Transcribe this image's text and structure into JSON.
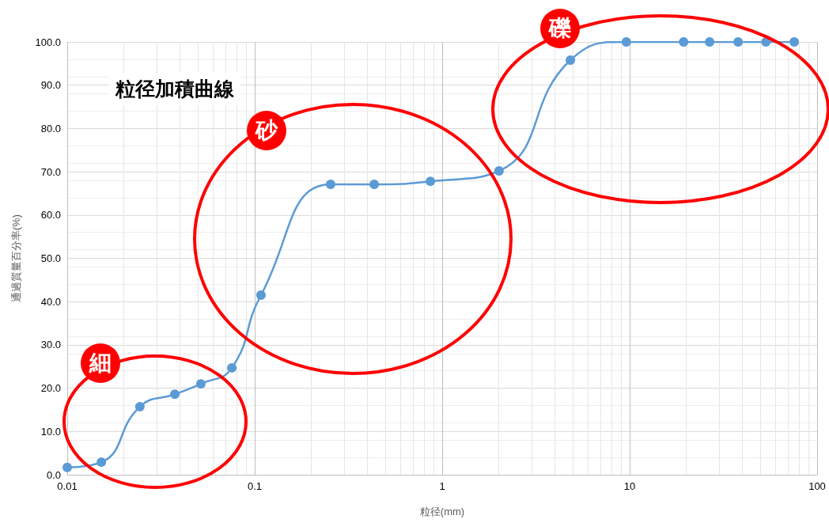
{
  "chart_data": {
    "type": "line",
    "title": "粒径加積曲線",
    "xlabel": "粒径(mm)",
    "ylabel": "通過質量百分率(%)",
    "x": [
      0.01,
      0.0152,
      0.0244,
      0.0375,
      0.0516,
      0.0755,
      0.108,
      0.254,
      0.434,
      0.865,
      2.01,
      4.83,
      9.6,
      19.4,
      26.7,
      37.9,
      53.3,
      75.5
    ],
    "series": [
      {
        "color": "#5b9bd5",
        "values": [
          1.7,
          2.9,
          15.7,
          18.6,
          21.0,
          24.7,
          41.5,
          67.1,
          67.1,
          67.8,
          70.2,
          95.8,
          100,
          100,
          100,
          100,
          100,
          100
        ]
      }
    ],
    "log": "x",
    "xlim": [
      0.01,
      100
    ],
    "xticks": [
      0.01,
      0.1,
      1,
      10,
      100
    ],
    "ylim": [
      0,
      100
    ],
    "yticks": [
      {
        "value": 0,
        "label": "0.0"
      },
      {
        "value": 10,
        "label": "10.0"
      },
      {
        "value": 20,
        "label": "20.0"
      },
      {
        "value": 30,
        "label": "30.0"
      },
      {
        "value": 40,
        "label": "40.0"
      },
      {
        "value": 50,
        "label": "50.0"
      },
      {
        "value": 60,
        "label": "60.0"
      },
      {
        "value": 70,
        "label": "70.0"
      },
      {
        "value": 80,
        "label": "80.0"
      },
      {
        "value": 90,
        "label": "90.0"
      },
      {
        "value": 100,
        "label": "100.0"
      }
    ],
    "grid": true,
    "marker": "circle",
    "line_style": "solid",
    "annotations": [
      "細",
      "砂",
      "礫"
    ]
  }
}
